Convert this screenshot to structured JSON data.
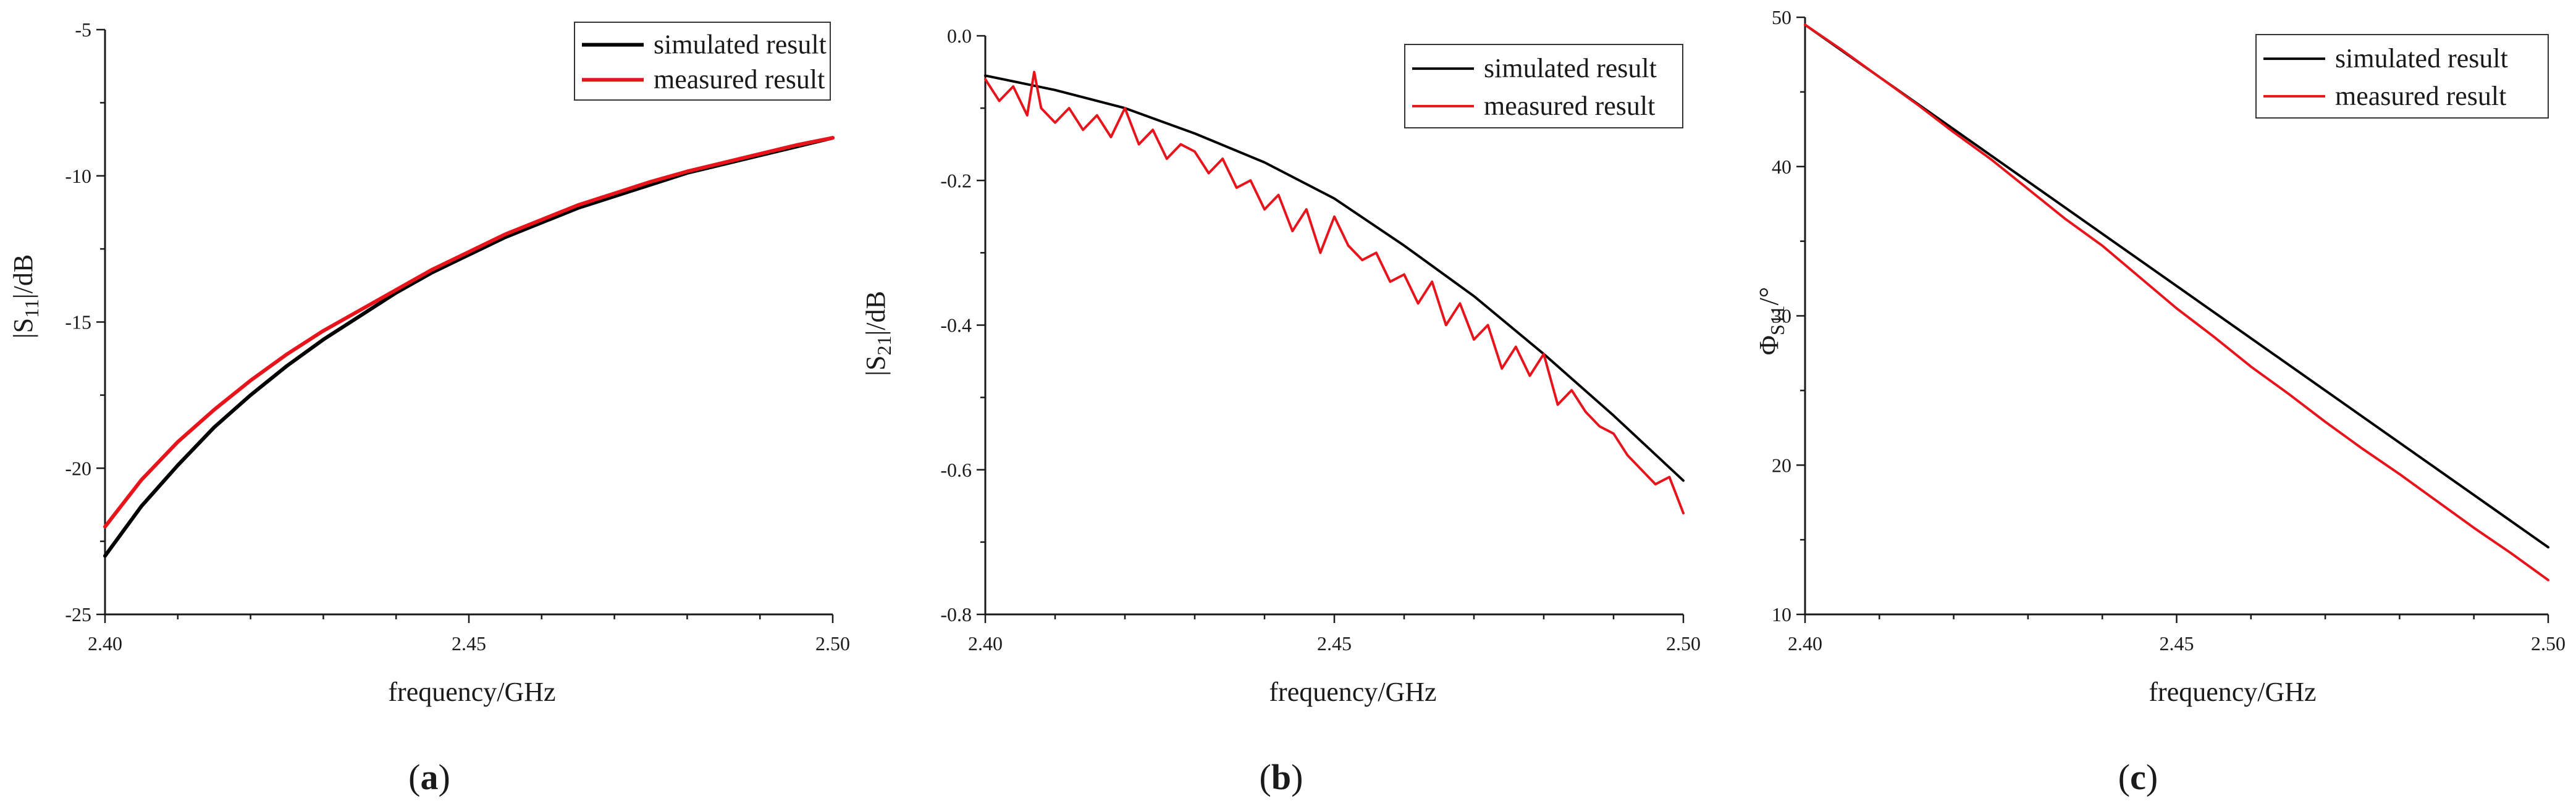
{
  "figure_labels": [
    "a",
    "b",
    "c"
  ],
  "chart_data": [
    {
      "type": "line",
      "panel": "a",
      "xlabel": "frequency/GHz",
      "ylabel": {
        "prefix": "|S",
        "sub": "11",
        "suffix": "|/dB"
      },
      "xlim": [
        2.4,
        2.5
      ],
      "ylim": [
        -25,
        -5
      ],
      "xticks": [
        2.4,
        2.45,
        2.5
      ],
      "xtick_labels": [
        "2.40",
        "2.45",
        "2.50"
      ],
      "yticks": [
        -25,
        -20,
        -15,
        -10,
        -5
      ],
      "ytick_labels": [
        "-25",
        "-20",
        "-15",
        "-10",
        "-5"
      ],
      "legend_position": "top-right",
      "series": [
        {
          "name": "simulated result",
          "color": "#000000",
          "x": [
            2.4,
            2.405,
            2.41,
            2.415,
            2.42,
            2.425,
            2.43,
            2.435,
            2.44,
            2.445,
            2.45,
            2.455,
            2.46,
            2.465,
            2.47,
            2.475,
            2.48,
            2.485,
            2.49,
            2.495,
            2.5
          ],
          "y": [
            -23.0,
            -21.3,
            -19.9,
            -18.6,
            -17.5,
            -16.5,
            -15.6,
            -14.8,
            -14.0,
            -13.3,
            -12.7,
            -12.1,
            -11.6,
            -11.1,
            -10.7,
            -10.3,
            -9.9,
            -9.6,
            -9.3,
            -9.0,
            -8.7
          ]
        },
        {
          "name": "measured result",
          "color": "#e8141c",
          "x": [
            2.4,
            2.405,
            2.41,
            2.415,
            2.42,
            2.425,
            2.43,
            2.435,
            2.44,
            2.445,
            2.45,
            2.455,
            2.46,
            2.465,
            2.47,
            2.475,
            2.48,
            2.485,
            2.49,
            2.495,
            2.5
          ],
          "y": [
            -22.0,
            -20.4,
            -19.1,
            -18.0,
            -17.0,
            -16.1,
            -15.3,
            -14.6,
            -13.9,
            -13.2,
            -12.6,
            -12.0,
            -11.5,
            -11.0,
            -10.6,
            -10.2,
            -9.85,
            -9.55,
            -9.25,
            -8.95,
            -8.7
          ]
        }
      ]
    },
    {
      "type": "line",
      "panel": "b",
      "xlabel": "frequency/GHz",
      "ylabel": {
        "prefix": "|S",
        "sub": "21",
        "suffix": "|/dB"
      },
      "xlim": [
        2.4,
        2.5
      ],
      "ylim": [
        -0.8,
        0.0
      ],
      "xticks": [
        2.4,
        2.45,
        2.5
      ],
      "xtick_labels": [
        "2.40",
        "2.45",
        "2.50"
      ],
      "yticks": [
        -0.8,
        -0.6,
        -0.4,
        -0.2,
        0.0
      ],
      "ytick_labels": [
        "-0.8",
        "-0.6",
        "-0.4",
        "-0.2",
        "0.0"
      ],
      "legend_position": "top-right",
      "series": [
        {
          "name": "simulated result",
          "color": "#000000",
          "x": [
            2.4,
            2.41,
            2.42,
            2.43,
            2.44,
            2.45,
            2.46,
            2.47,
            2.48,
            2.49,
            2.5
          ],
          "y": [
            -0.055,
            -0.075,
            -0.1,
            -0.135,
            -0.175,
            -0.225,
            -0.29,
            -0.36,
            -0.44,
            -0.525,
            -0.615
          ]
        },
        {
          "name": "measured result",
          "color": "#e8141c",
          "x": [
            2.4,
            2.402,
            2.404,
            2.406,
            2.407,
            2.408,
            2.41,
            2.412,
            2.414,
            2.416,
            2.418,
            2.42,
            2.422,
            2.424,
            2.426,
            2.428,
            2.43,
            2.432,
            2.434,
            2.436,
            2.438,
            2.44,
            2.442,
            2.444,
            2.446,
            2.448,
            2.45,
            2.452,
            2.454,
            2.456,
            2.458,
            2.46,
            2.462,
            2.464,
            2.466,
            2.468,
            2.47,
            2.472,
            2.474,
            2.476,
            2.478,
            2.48,
            2.482,
            2.484,
            2.486,
            2.488,
            2.49,
            2.492,
            2.494,
            2.496,
            2.498,
            2.5
          ],
          "y": [
            -0.06,
            -0.09,
            -0.07,
            -0.11,
            -0.05,
            -0.1,
            -0.12,
            -0.1,
            -0.13,
            -0.11,
            -0.14,
            -0.1,
            -0.15,
            -0.13,
            -0.17,
            -0.15,
            -0.16,
            -0.19,
            -0.17,
            -0.21,
            -0.2,
            -0.24,
            -0.22,
            -0.27,
            -0.24,
            -0.3,
            -0.25,
            -0.29,
            -0.31,
            -0.3,
            -0.34,
            -0.33,
            -0.37,
            -0.34,
            -0.4,
            -0.37,
            -0.42,
            -0.4,
            -0.46,
            -0.43,
            -0.47,
            -0.44,
            -0.51,
            -0.49,
            -0.52,
            -0.54,
            -0.55,
            -0.58,
            -0.6,
            -0.62,
            -0.61,
            -0.66
          ]
        }
      ]
    },
    {
      "type": "line",
      "panel": "c",
      "xlabel": "frequency/GHz",
      "ylabel": {
        "prefix": "Φ",
        "sub": "S11",
        "suffix": "/°"
      },
      "xlim": [
        2.4,
        2.5
      ],
      "ylim": [
        10,
        50
      ],
      "xticks": [
        2.4,
        2.45,
        2.5
      ],
      "xtick_labels": [
        "2.40",
        "2.45",
        "2.50"
      ],
      "yticks": [
        10,
        20,
        30,
        40,
        50
      ],
      "ytick_labels": [
        "10",
        "20",
        "30",
        "40",
        "50"
      ],
      "legend_position": "top-right",
      "series": [
        {
          "name": "simulated result",
          "color": "#000000",
          "x": [
            2.4,
            2.5
          ],
          "y": [
            49.5,
            14.5
          ]
        },
        {
          "name": "measured result",
          "color": "#e8141c",
          "x": [
            2.4,
            2.405,
            2.41,
            2.415,
            2.42,
            2.425,
            2.43,
            2.435,
            2.44,
            2.445,
            2.45,
            2.455,
            2.46,
            2.465,
            2.47,
            2.475,
            2.48,
            2.485,
            2.49,
            2.495,
            2.5
          ],
          "y": [
            49.5,
            47.8,
            46.0,
            44.2,
            42.3,
            40.5,
            38.5,
            36.5,
            34.7,
            32.6,
            30.5,
            28.6,
            26.6,
            24.8,
            22.9,
            21.1,
            19.4,
            17.6,
            15.8,
            14.1,
            12.3
          ]
        }
      ]
    }
  ]
}
